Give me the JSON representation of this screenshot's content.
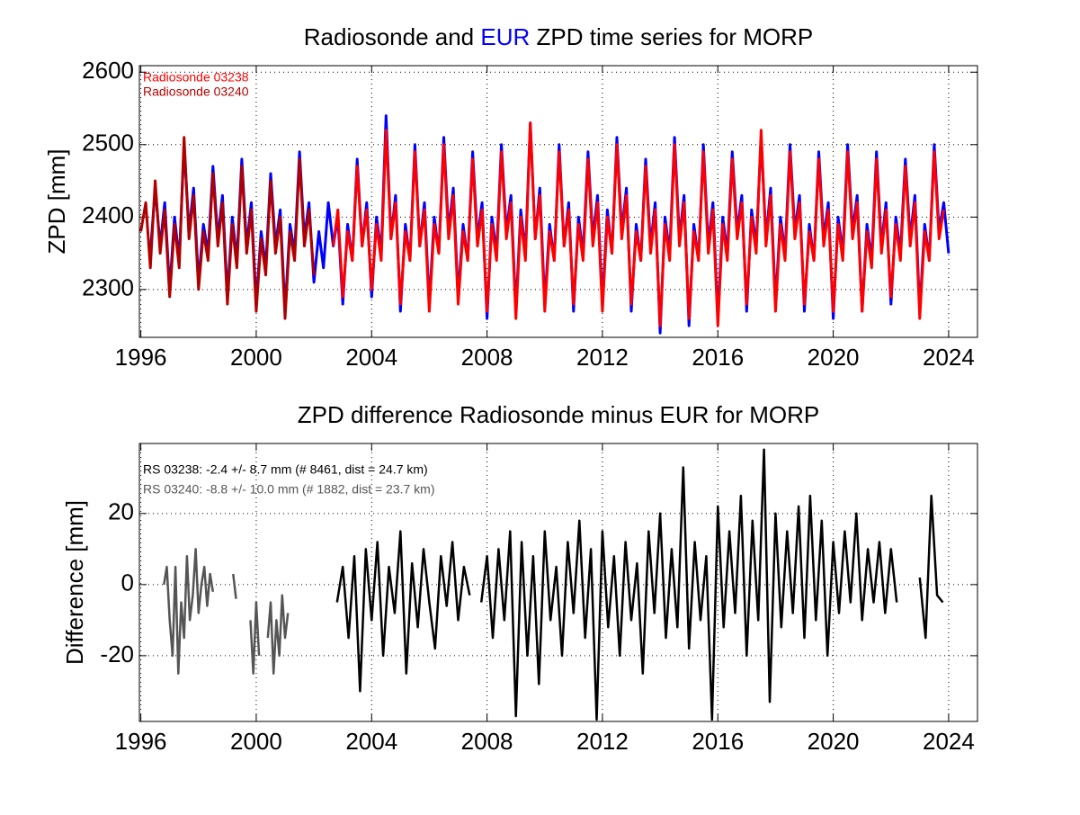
{
  "chart_data": [
    {
      "type": "line",
      "title": "Radiosonde and EUR ZPD time series for MORP",
      "ylabel": "ZPD [mm]",
      "xlim": [
        1995.95,
        2025
      ],
      "xticks": [
        1996,
        2000,
        2004,
        2008,
        2012,
        2016,
        2020,
        2024
      ],
      "ylim": [
        2234,
        2609
      ],
      "yticks": [
        2300,
        2400,
        2500,
        2600
      ],
      "grid": true,
      "legend": "upper left",
      "series": [
        {
          "name": "EUR",
          "color": "#0000ff",
          "in_legend": false,
          "x": [
            1996.33,
            1996.5,
            1996.67,
            1996.83,
            1997,
            1997.17,
            1997.33,
            1997.5,
            1997.67,
            1997.83,
            1998,
            1998.17,
            1998.33,
            1998.5,
            1998.67,
            1998.83,
            1999,
            1999.17,
            1999.33,
            1999.5,
            1999.67,
            1999.83,
            2000,
            2000.17,
            2000.33,
            2000.5,
            2000.67,
            2000.83,
            2001,
            2001.17,
            2001.33,
            2001.5,
            2001.67,
            2001.83,
            2002,
            2002.17,
            2002.33,
            2002.5,
            2002.67,
            2002.83,
            2003,
            2003.17,
            2003.33,
            2003.5,
            2003.67,
            2003.83,
            2004,
            2004.17,
            2004.33,
            2004.5,
            2004.67,
            2004.83,
            2005,
            2005.17,
            2005.33,
            2005.5,
            2005.67,
            2005.83,
            2006,
            2006.17,
            2006.33,
            2006.5,
            2006.67,
            2006.83,
            2007,
            2007.17,
            2007.33,
            2007.5,
            2007.67,
            2007.83,
            2008,
            2008.17,
            2008.33,
            2008.5,
            2008.67,
            2008.83,
            2009,
            2009.17,
            2009.33,
            2009.5,
            2009.67,
            2009.83,
            2010,
            2010.17,
            2010.33,
            2010.5,
            2010.67,
            2010.83,
            2011,
            2011.17,
            2011.33,
            2011.5,
            2011.67,
            2011.83,
            2012,
            2012.17,
            2012.33,
            2012.5,
            2012.67,
            2012.83,
            2013,
            2013.17,
            2013.33,
            2013.5,
            2013.67,
            2013.83,
            2014,
            2014.17,
            2014.33,
            2014.5,
            2014.67,
            2014.83,
            2015,
            2015.17,
            2015.33,
            2015.5,
            2015.67,
            2015.83,
            2016,
            2016.17,
            2016.33,
            2016.5,
            2016.67,
            2016.83,
            2017,
            2017.17,
            2017.33,
            2017.5,
            2017.67,
            2017.83,
            2018,
            2018.17,
            2018.33,
            2018.5,
            2018.67,
            2018.83,
            2019,
            2019.17,
            2019.33,
            2019.5,
            2019.67,
            2019.83,
            2020,
            2020.17,
            2020.33,
            2020.5,
            2020.67,
            2020.83,
            2021,
            2021.17,
            2021.33,
            2021.5,
            2021.67,
            2021.83,
            2022,
            2022.17,
            2022.33,
            2022.5,
            2022.67,
            2022.83,
            2023,
            2023.17,
            2023.33,
            2023.5,
            2023.67,
            2023.83,
            2024
          ],
          "values": [
            2350,
            2440,
            2360,
            2420,
            2300,
            2400,
            2340,
            2500,
            2380,
            2440,
            2310,
            2390,
            2350,
            2470,
            2370,
            2430,
            2290,
            2400,
            2340,
            2480,
            2360,
            2420,
            2280,
            2380,
            2330,
            2460,
            2360,
            2410,
            2270,
            2390,
            2350,
            2490,
            2370,
            2420,
            2310,
            2380,
            2330,
            2420,
            2360,
            2400,
            2280,
            2390,
            2340,
            2480,
            2360,
            2420,
            2290,
            2400,
            2350,
            2540,
            2370,
            2430,
            2270,
            2390,
            2340,
            2500,
            2360,
            2420,
            2280,
            2400,
            2350,
            2510,
            2380,
            2440,
            2290,
            2390,
            2340,
            2490,
            2370,
            2420,
            2260,
            2400,
            2350,
            2500,
            2380,
            2430,
            2270,
            2410,
            2350,
            2530,
            2370,
            2440,
            2280,
            2390,
            2340,
            2500,
            2360,
            2420,
            2270,
            2400,
            2350,
            2490,
            2370,
            2430,
            2280,
            2410,
            2350,
            2510,
            2380,
            2440,
            2270,
            2390,
            2340,
            2480,
            2360,
            2420,
            2240,
            2400,
            2350,
            2510,
            2370,
            2430,
            2250,
            2390,
            2340,
            2500,
            2360,
            2420,
            2260,
            2400,
            2350,
            2490,
            2380,
            2430,
            2270,
            2410,
            2360,
            2510,
            2370,
            2440,
            2280,
            2400,
            2350,
            2500,
            2380,
            2430,
            2270,
            2390,
            2340,
            2490,
            2370,
            2420,
            2260,
            2400,
            2350,
            2500,
            2380,
            2430,
            2270,
            2390,
            2340,
            2490,
            2360,
            2420,
            2280,
            2400,
            2350,
            2480,
            2370,
            2430,
            2270,
            2390,
            2340,
            2500,
            2380,
            2420,
            2350
          ]
        },
        {
          "name": "Radiosonde 03238",
          "color": "#ff0000",
          "x": [
            2002.67,
            2002.83,
            2003,
            2003.17,
            2003.33,
            2003.5,
            2003.67,
            2003.83,
            2004,
            2004.17,
            2004.33,
            2004.5,
            2004.67,
            2004.83,
            2005,
            2005.17,
            2005.33,
            2005.5,
            2005.67,
            2005.83,
            2006,
            2006.17,
            2006.33,
            2006.5,
            2006.67,
            2006.83,
            2007,
            2007.17,
            2007.33,
            2007.5,
            2007.67,
            2007.83,
            2008,
            2008.17,
            2008.33,
            2008.5,
            2008.67,
            2008.83,
            2009,
            2009.17,
            2009.33,
            2009.5,
            2009.67,
            2009.83,
            2010,
            2010.17,
            2010.33,
            2010.5,
            2010.67,
            2010.83,
            2011,
            2011.17,
            2011.33,
            2011.5,
            2011.67,
            2011.83,
            2012,
            2012.17,
            2012.33,
            2012.5,
            2012.67,
            2012.83,
            2013,
            2013.17,
            2013.33,
            2013.5,
            2013.67,
            2013.83,
            2014,
            2014.17,
            2014.33,
            2014.5,
            2014.67,
            2014.83,
            2015,
            2015.17,
            2015.33,
            2015.5,
            2015.67,
            2015.83,
            2016,
            2016.17,
            2016.33,
            2016.5,
            2016.67,
            2016.83,
            2017,
            2017.17,
            2017.33,
            2017.5,
            2017.67,
            2017.83,
            2018,
            2018.17,
            2018.33,
            2018.5,
            2018.67,
            2018.83,
            2019,
            2019.17,
            2019.33,
            2019.5,
            2019.67,
            2019.83,
            2020,
            2020.17,
            2020.33,
            2020.5,
            2020.67,
            2020.83,
            2021,
            2021.17,
            2021.33,
            2021.5,
            2021.67,
            2021.83,
            2022,
            2022.17,
            2022.33,
            2022.5,
            2022.67,
            2022.83,
            2023,
            2023.17,
            2023.33,
            2023.5,
            2023.67,
            2023.83
          ],
          "values": [
            2360,
            2410,
            2290,
            2380,
            2340,
            2470,
            2360,
            2410,
            2300,
            2390,
            2340,
            2520,
            2370,
            2420,
            2280,
            2380,
            2340,
            2490,
            2360,
            2410,
            2270,
            2390,
            2350,
            2500,
            2370,
            2430,
            2280,
            2380,
            2340,
            2480,
            2360,
            2410,
            2270,
            2390,
            2340,
            2490,
            2370,
            2420,
            2260,
            2400,
            2340,
            2530,
            2370,
            2430,
            2270,
            2380,
            2340,
            2490,
            2360,
            2410,
            2280,
            2390,
            2340,
            2480,
            2360,
            2420,
            2270,
            2400,
            2350,
            2500,
            2370,
            2430,
            2280,
            2380,
            2340,
            2470,
            2350,
            2410,
            2250,
            2390,
            2340,
            2500,
            2360,
            2420,
            2260,
            2380,
            2340,
            2490,
            2350,
            2410,
            2250,
            2390,
            2340,
            2480,
            2370,
            2420,
            2280,
            2400,
            2350,
            2520,
            2360,
            2430,
            2270,
            2390,
            2340,
            2490,
            2370,
            2420,
            2280,
            2380,
            2340,
            2480,
            2360,
            2410,
            2270,
            2390,
            2340,
            2490,
            2370,
            2420,
            2270,
            2380,
            2330,
            2480,
            2350,
            2410,
            2290,
            2390,
            2340,
            2470,
            2360,
            2420,
            2260,
            2380,
            2340,
            2490,
            2370,
            2410
          ]
        },
        {
          "name": "Radiosonde 03240",
          "color": "#b00000",
          "x": [
            1996,
            1996.17,
            1996.33,
            1996.5,
            1996.67,
            1996.83,
            1997,
            1997.17,
            1997.33,
            1997.5,
            1997.67,
            1997.83,
            1998,
            1998.17,
            1998.33,
            1998.5,
            1998.67,
            1998.83,
            1999,
            1999.17,
            1999.33,
            1999.5,
            1999.67,
            1999.83,
            2000,
            2000.17,
            2000.33,
            2000.5,
            2000.67,
            2000.83,
            2001,
            2001.17,
            2001.33,
            2001.5,
            2001.67,
            2001.83,
            2002
          ],
          "values": [
            2380,
            2420,
            2330,
            2450,
            2350,
            2410,
            2290,
            2390,
            2330,
            2510,
            2370,
            2430,
            2300,
            2380,
            2340,
            2460,
            2360,
            2420,
            2280,
            2390,
            2330,
            2470,
            2350,
            2410,
            2270,
            2370,
            2320,
            2450,
            2350,
            2400,
            2260,
            2380,
            2340,
            2480,
            2360,
            2410,
            2320
          ]
        }
      ]
    },
    {
      "type": "line",
      "title": "ZPD difference Radiosonde minus EUR for MORP",
      "ylabel": "Difference [mm]",
      "xlim": [
        1995.95,
        2025
      ],
      "xticks": [
        1996,
        2000,
        2004,
        2008,
        2012,
        2016,
        2020,
        2024
      ],
      "ylim": [
        -38.5,
        39.7
      ],
      "yticks": [
        -20,
        0,
        20
      ],
      "grid": true,
      "legend": "upper left",
      "series": [
        {
          "name": "RS 03238: -2.4 +/- 8.7 mm (# 8461, dist =  24.7 km)",
          "color": "#000000",
          "x": [
            2002.8,
            2003,
            2003.2,
            2003.4,
            2003.6,
            2003.8,
            2004,
            2004.2,
            2004.4,
            2004.6,
            2004.8,
            2005,
            2005.2,
            2005.4,
            2005.6,
            2005.8,
            2006,
            2006.2,
            2006.4,
            2006.6,
            2006.8,
            2007,
            2007.2,
            2007.4,
            2007.6,
            2007.8,
            2008,
            2008.2,
            2008.4,
            2008.6,
            2008.8,
            2009,
            2009.2,
            2009.4,
            2009.6,
            2009.8,
            2010,
            2010.2,
            2010.4,
            2010.6,
            2010.8,
            2011,
            2011.2,
            2011.4,
            2011.6,
            2011.8,
            2012,
            2012.2,
            2012.4,
            2012.6,
            2012.8,
            2013,
            2013.2,
            2013.4,
            2013.6,
            2013.8,
            2014,
            2014.2,
            2014.4,
            2014.6,
            2014.8,
            2015,
            2015.2,
            2015.4,
            2015.6,
            2015.8,
            2016,
            2016.2,
            2016.4,
            2016.6,
            2016.8,
            2017,
            2017.2,
            2017.4,
            2017.6,
            2017.8,
            2018,
            2018.2,
            2018.4,
            2018.6,
            2018.8,
            2019,
            2019.2,
            2019.4,
            2019.6,
            2019.8,
            2020,
            2020.2,
            2020.4,
            2020.6,
            2020.8,
            2021,
            2021.2,
            2021.4,
            2021.6,
            2021.8,
            2022,
            2022.2,
            2022.6,
            2023,
            2023.2,
            2023.4,
            2023.6,
            2023.8
          ],
          "values": [
            -5,
            5,
            -15,
            8,
            -30,
            10,
            -10,
            12,
            -20,
            5,
            -8,
            15,
            -25,
            6,
            -12,
            10,
            -5,
            -18,
            8,
            -6,
            12,
            -10,
            5,
            -3,
            null,
            -5,
            8,
            -15,
            10,
            -10,
            15,
            -37,
            12,
            -20,
            8,
            -28,
            15,
            -10,
            5,
            -20,
            12,
            -8,
            18,
            -15,
            10,
            -38,
            15,
            -12,
            8,
            -20,
            12,
            -10,
            6,
            -25,
            15,
            -8,
            20,
            -15,
            10,
            -12,
            33,
            -18,
            12,
            -10,
            8,
            -38,
            22,
            -12,
            15,
            -8,
            25,
            -20,
            18,
            -10,
            38,
            -33,
            20,
            -12,
            15,
            -8,
            22,
            -15,
            25,
            -10,
            18,
            -20,
            12,
            -8,
            15,
            -5,
            20,
            -10,
            10,
            -5,
            12,
            -8,
            10,
            -5,
            null,
            2,
            -15,
            25,
            -3,
            -5
          ]
        },
        {
          "name": "RS 03240: -8.8 +/- 10.0 mm (# 1882, dist =  23.7 km)",
          "color": "#555555",
          "x": [
            1996.8,
            1996.9,
            1997,
            1997.1,
            1997.2,
            1997.3,
            1997.4,
            1997.5,
            1997.6,
            1997.7,
            1997.8,
            1997.9,
            1998,
            1998.1,
            1998.2,
            1998.3,
            1998.4,
            1998.5,
            1998.7,
            1999.2,
            1999.3,
            1999.5,
            1999.8,
            1999.9,
            2000,
            2000.1,
            2000.25,
            2000.4,
            2000.5,
            2000.6,
            2000.7,
            2000.8,
            2000.9,
            2001,
            2001.1
          ],
          "values": [
            0,
            5,
            -10,
            -20,
            5,
            -25,
            -5,
            -15,
            8,
            -10,
            -3,
            10,
            -8,
            0,
            5,
            -6,
            3,
            -2,
            null,
            3,
            -4,
            null,
            -10,
            -25,
            -5,
            -20,
            null,
            -15,
            -5,
            -25,
            -10,
            -20,
            -3,
            -15,
            -8
          ]
        }
      ]
    }
  ]
}
